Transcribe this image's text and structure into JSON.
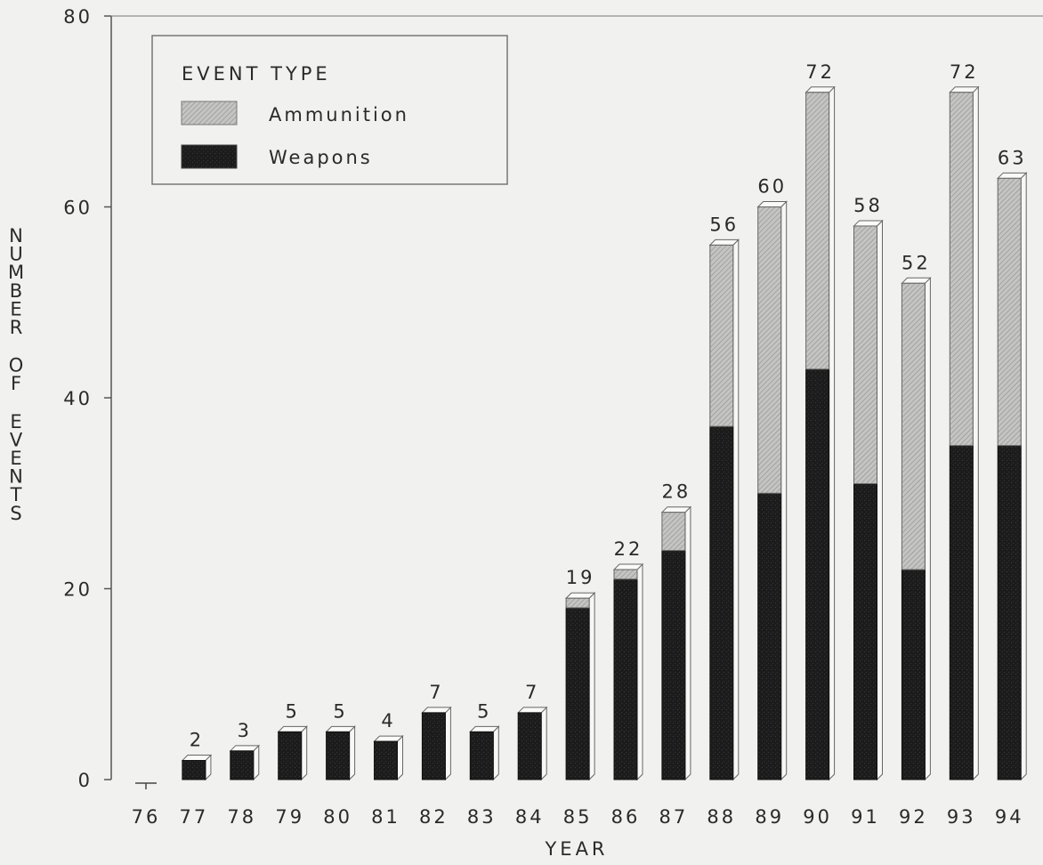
{
  "chart_data": {
    "type": "bar",
    "stacked": true,
    "xlabel": "YEAR",
    "ylabel": "NUMBER OF EVENTS",
    "ylim": [
      0,
      80
    ],
    "yticks": [
      0,
      20,
      40,
      60,
      80
    ],
    "grid": false,
    "legend": {
      "title": "EVENT TYPE",
      "position": "top-left"
    },
    "categories": [
      "76",
      "77",
      "78",
      "79",
      "80",
      "81",
      "82",
      "83",
      "84",
      "85",
      "86",
      "87",
      "88",
      "89",
      "90",
      "91",
      "92",
      "93",
      "94"
    ],
    "series": [
      {
        "name": "Weapons",
        "color": "#1e1e1e",
        "values": [
          0,
          2,
          3,
          5,
          5,
          4,
          7,
          5,
          7,
          18,
          21,
          24,
          37,
          30,
          43,
          31,
          22,
          35,
          35
        ]
      },
      {
        "name": "Ammunition",
        "color": "#b9b9b7",
        "values": [
          0,
          0,
          0,
          0,
          0,
          0,
          0,
          0,
          0,
          1,
          1,
          4,
          19,
          30,
          29,
          27,
          30,
          37,
          28
        ]
      }
    ],
    "totals": [
      "",
      "2",
      "3",
      "5",
      "5",
      "4",
      "7",
      "5",
      "7",
      "19",
      "22",
      "28",
      "56",
      "60",
      "72",
      "58",
      "52",
      "72",
      "63"
    ]
  }
}
